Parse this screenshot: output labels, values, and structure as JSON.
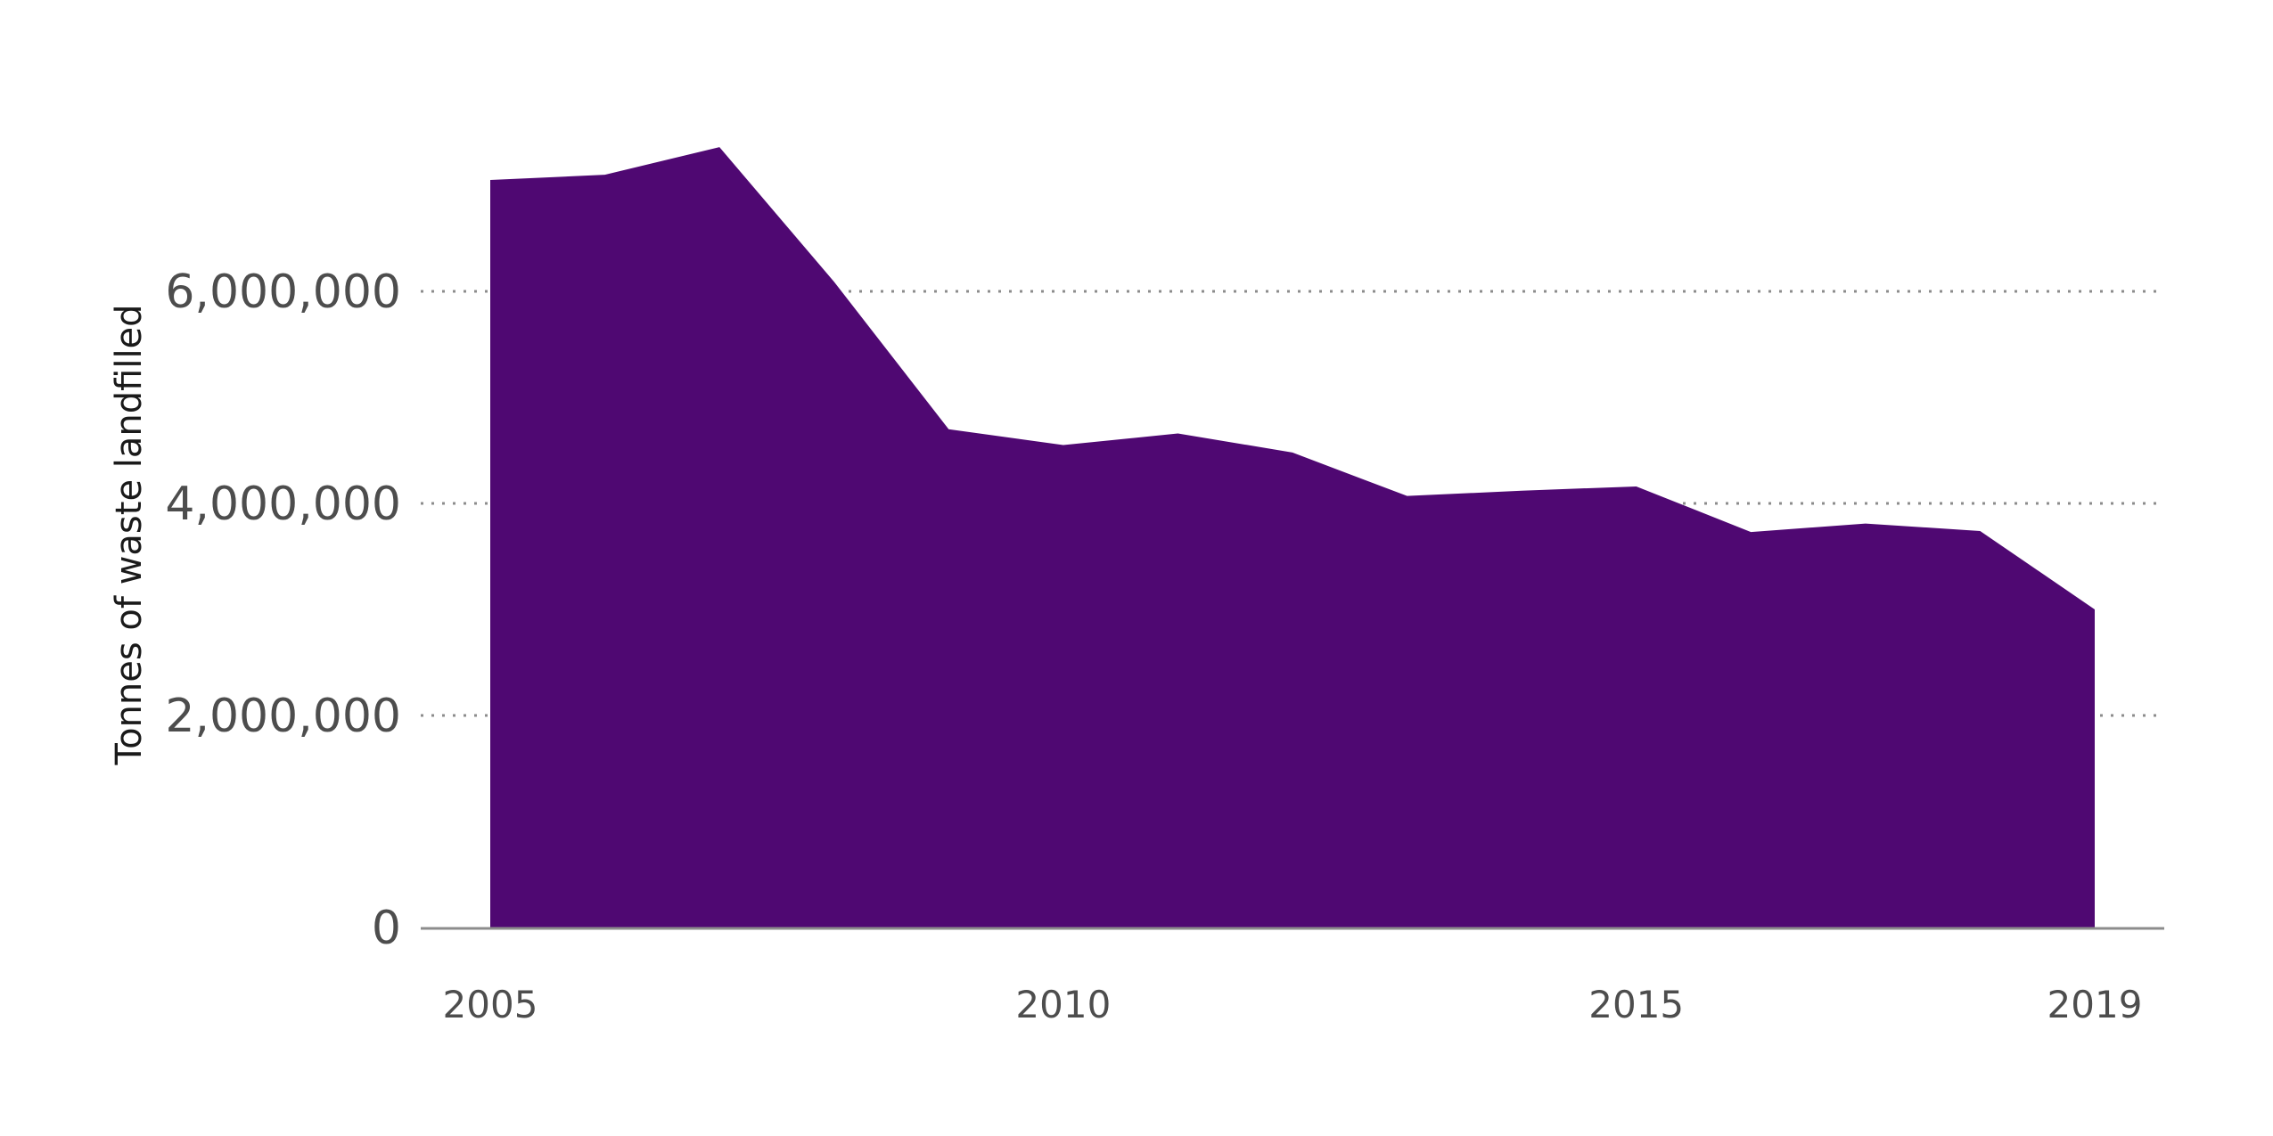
{
  "chart_data": {
    "type": "area",
    "title": "",
    "xlabel": "",
    "ylabel": "Tonnes of waste landfilled",
    "x": [
      2005,
      2006,
      2007,
      2008,
      2009,
      2010,
      2011,
      2012,
      2013,
      2014,
      2015,
      2016,
      2017,
      2018,
      2019
    ],
    "values": [
      7050000,
      7100000,
      7360000,
      6090000,
      4700000,
      4550000,
      4660000,
      4480000,
      4070000,
      4120000,
      4160000,
      3730000,
      3810000,
      3740000,
      3000000
    ],
    "xlim": [
      2005,
      2019
    ],
    "ylim": [
      0,
      7500000
    ],
    "x_ticks": [
      2005,
      2010,
      2015,
      2019
    ],
    "x_tick_labels": [
      "2005",
      "2010",
      "2015",
      "2019"
    ],
    "y_ticks": [
      0,
      2000000,
      4000000,
      6000000
    ],
    "y_tick_labels": [
      "0",
      "2,000,000",
      "4,000,000",
      "6,000,000"
    ],
    "grid": "horizontal dotted",
    "legend": "none",
    "colors": {
      "fill": "#4f0872",
      "grid": "#8c8c8c",
      "axis": "#8c8c8c",
      "text": "#4d4d4d"
    }
  }
}
